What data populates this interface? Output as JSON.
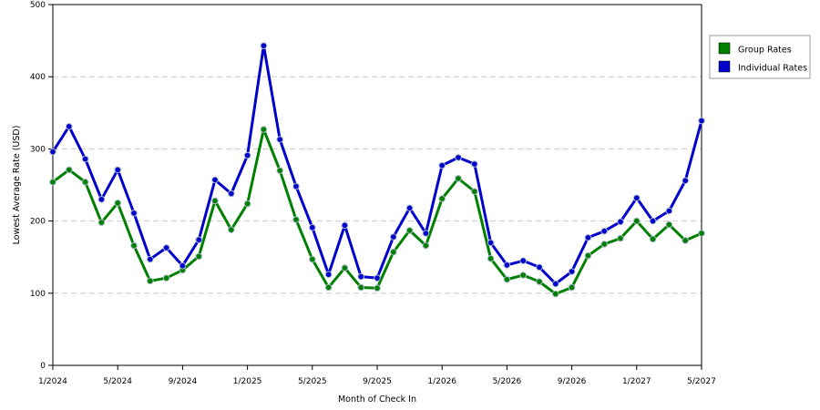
{
  "chart_data": {
    "type": "line",
    "title": "",
    "xlabel": "Month of Check In",
    "ylabel": "Lowest Average Rate (USD)",
    "ylim": [
      0,
      500
    ],
    "yticks": [
      "0",
      "100",
      "200",
      "300",
      "400",
      "500"
    ],
    "ytick_values": [
      0,
      100,
      200,
      300,
      400,
      500
    ],
    "xticks": [
      "1/2024",
      "5/2024",
      "9/2024",
      "1/2025",
      "5/2025",
      "9/2025",
      "1/2026",
      "5/2026",
      "9/2026",
      "1/2027",
      "5/2027"
    ],
    "xtick_month_index": [
      0,
      4,
      8,
      12,
      16,
      20,
      24,
      28,
      32,
      36,
      40
    ],
    "x": [
      "1/2024",
      "2/2024",
      "3/2024",
      "4/2024",
      "5/2024",
      "6/2024",
      "7/2024",
      "8/2024",
      "9/2024",
      "10/2024",
      "11/2024",
      "12/2024",
      "1/2025",
      "2/2025",
      "3/2025",
      "4/2025",
      "5/2025",
      "6/2025",
      "7/2025",
      "8/2025",
      "9/2025",
      "10/2025",
      "11/2025",
      "12/2025",
      "1/2026",
      "2/2026",
      "3/2026",
      "4/2026",
      "5/2026",
      "6/2026",
      "7/2026",
      "8/2026",
      "9/2026",
      "10/2026",
      "11/2026",
      "12/2026",
      "1/2027",
      "2/2027",
      "3/2027",
      "4/2027",
      "5/2027"
    ],
    "grid": true,
    "legend_position": "right",
    "series": [
      {
        "name": "Group Rates",
        "color": "#008000",
        "values": [
          254,
          271,
          254,
          198,
          225,
          166,
          117,
          121,
          132,
          151,
          228,
          188,
          224,
          327,
          270,
          202,
          147,
          108,
          135,
          108,
          107,
          157,
          187,
          166,
          231,
          259,
          241,
          148,
          119,
          125,
          116,
          99,
          108,
          152,
          168,
          176,
          200,
          175,
          195,
          173,
          183
        ]
      },
      {
        "name": "Individual Rates",
        "color": "#0000cc",
        "values": [
          296,
          331,
          286,
          230,
          271,
          211,
          147,
          163,
          138,
          174,
          257,
          238,
          291,
          443,
          313,
          248,
          191,
          126,
          194,
          123,
          121,
          178,
          218,
          183,
          277,
          288,
          279,
          170,
          139,
          145,
          136,
          113,
          130,
          177,
          186,
          199,
          232,
          200,
          214,
          256,
          339
        ]
      }
    ]
  }
}
